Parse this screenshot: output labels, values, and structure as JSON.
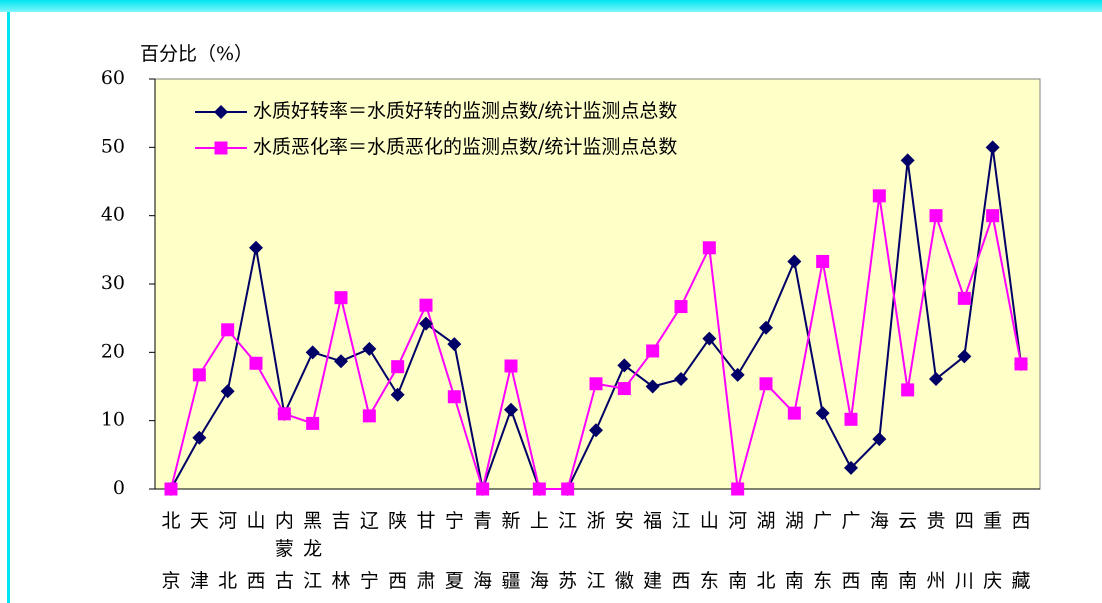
{
  "chart_data": {
    "type": "line",
    "y_axis_label": "百分比（%）",
    "categories": [
      "北京",
      "天津",
      "河北",
      "山西",
      "内蒙古",
      "黑龙江",
      "吉林",
      "辽宁",
      "陕西",
      "甘肃",
      "宁夏",
      "青海",
      "新疆",
      "上海",
      "江苏",
      "浙江",
      "安徽",
      "福建",
      "江西",
      "山东",
      "河南",
      "湖北",
      "湖南",
      "广东",
      "广西",
      "海南",
      "云南",
      "贵州",
      "四川",
      "重庆",
      "西藏"
    ],
    "series": [
      {
        "name": "水质好转率＝水质好转的监测点数/统计监测点总数",
        "color": "#000066",
        "marker": "diamond",
        "values": [
          0,
          7.5,
          14.3,
          35.3,
          11,
          20,
          18.7,
          20.5,
          13.8,
          24.2,
          21.2,
          0,
          11.6,
          0,
          0,
          8.6,
          18.1,
          15,
          16.1,
          22,
          16.7,
          23.6,
          33.3,
          11.1,
          3.1,
          7.3,
          48.1,
          16.1,
          19.4,
          50,
          18.3
        ]
      },
      {
        "name": "水质恶化率＝水质恶化的监测点数/统计监测点总数",
        "color": "#ff00ff",
        "marker": "square",
        "values": [
          0,
          16.7,
          23.3,
          18.4,
          11,
          9.6,
          28,
          10.7,
          17.9,
          26.9,
          13.5,
          0,
          18,
          0,
          0,
          15.4,
          14.7,
          20.2,
          26.7,
          35.3,
          0,
          15.4,
          11.1,
          33.3,
          10.2,
          42.9,
          14.5,
          40,
          27.9,
          40,
          18.3
        ]
      }
    ],
    "ylim": [
      0,
      60
    ],
    "yticks": [
      0,
      10,
      20,
      30,
      40,
      50,
      60
    ],
    "grid": false,
    "legend": "top-left"
  }
}
